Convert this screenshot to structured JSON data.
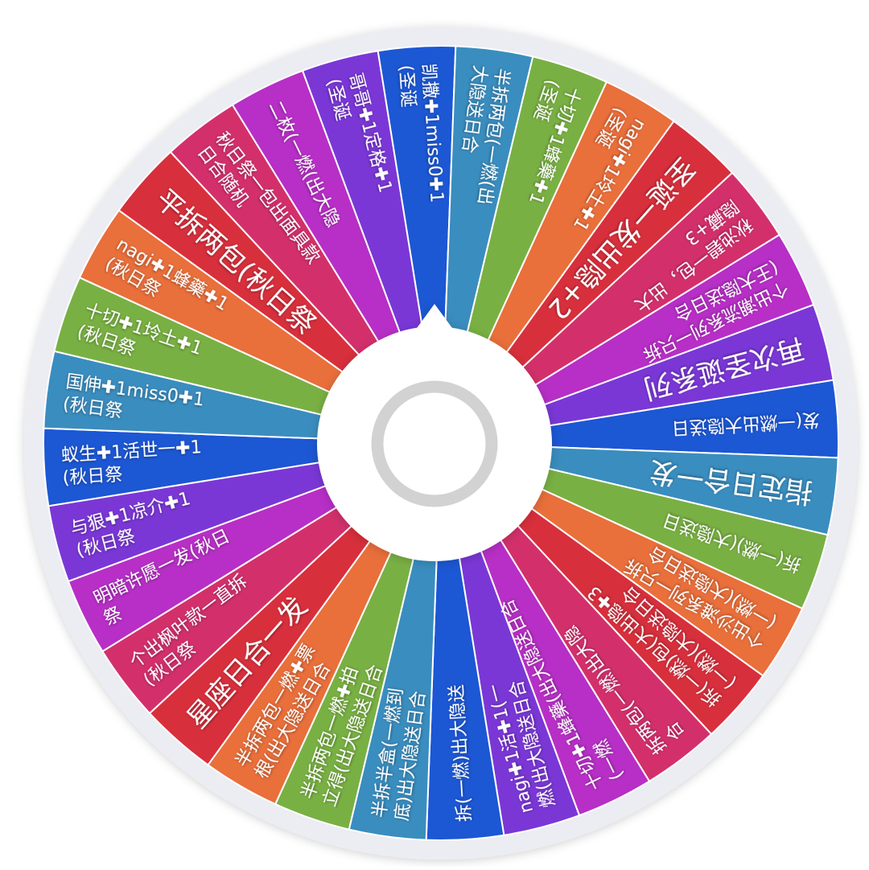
{
  "wheel": {
    "rim_color": "#ececf3",
    "divider_color": "#ffffff",
    "segments": [
      {
        "lines": [
          "蚁生✚1活世一✚1",
          "(秋日祭"
        ],
        "color": "#1c57d4"
      },
      {
        "lines": [
          "国伸✚1miss0✚1",
          "(秋日祭"
        ],
        "color": "#3a8dbf"
      },
      {
        "lines": [
          "十切✚1坽土✚1",
          "(秋日祭"
        ],
        "color": "#79b043"
      },
      {
        "lines": [
          "nagi✚1蜂藥✚1",
          "(秋日祭"
        ],
        "color": "#e96f3b"
      },
      {
        "lines": [
          "平拆两包(秋日祭"
        ],
        "color": "#d82f3c",
        "large": true
      },
      {
        "lines": [
          "秋日祭一包出面具款",
          "日合随机"
        ],
        "color": "#d3306b"
      },
      {
        "lines": [
          "二枚(一燃(出大隐"
        ],
        "color": "#b72fc6"
      },
      {
        "lines": [
          "哥哥✚1定格✚1",
          "(圣诞"
        ],
        "color": "#7a37d6"
      },
      {
        "lines": [
          "凯撒✚1miss0✚1",
          "(圣诞"
        ],
        "color": "#1c57d4"
      },
      {
        "lines": [
          "半拆两包(一燃(出",
          "大隐送日合"
        ],
        "color": "#3a8dbf"
      },
      {
        "lines": [
          "十切✚1蜂藥✚1",
          "(圣诞"
        ],
        "color": "#79b043"
      },
      {
        "lines": [
          "nagi✚1坽土✚1",
          "(圣诞"
        ],
        "color": "#e96f3b"
      },
      {
        "lines": [
          "圣诞一发出隐+2"
        ],
        "color": "#d82f3c",
        "large": true
      },
      {
        "lines": [
          "秋池碧一包，出大",
          "隐藏+3"
        ],
        "color": "#d3306b"
      },
      {
        "lines": [
          "个出潮流系列一只拆",
          "(王大隐送日合"
        ],
        "color": "#b72fc6"
      },
      {
        "lines": [
          "再次圣诞系列"
        ],
        "color": "#7a37d6",
        "large": true
      },
      {
        "lines": [
          "发(一燃出大隐送日"
        ],
        "color": "#1c57d4"
      },
      {
        "lines": [
          "指定日合一发"
        ],
        "color": "#3a8dbf",
        "large": true
      },
      {
        "lines": [
          "拆(一燃)(大隐送日"
        ],
        "color": "#79b043"
      },
      {
        "lines": [
          "个出沙滩系列一只拆",
          "(一燃)(大隐送日合"
        ],
        "color": "#e96f3b"
      },
      {
        "lines": [
          "拆(一燃)包(大出隐✚3",
          "(一燃)(大隐送日合"
        ],
        "color": "#d82f3c"
      },
      {
        "lines": [
          "拆两包(一燃)出大隐",
          "合"
        ],
        "color": "#d3306b"
      },
      {
        "lines": [
          "十切✚1蜂藥(出大隐送日合",
          "(一燃"
        ],
        "color": "#b72fc6"
      },
      {
        "lines": [
          "nagi✚1活✚1(一",
          "燃(出大隐送日合"
        ],
        "color": "#7a37d6"
      },
      {
        "lines": [
          "拆(一燃)出大隐送"
        ],
        "color": "#1c57d4"
      },
      {
        "lines": [
          "半拆半盒(一燃到",
          "底)出大隐送日合"
        ],
        "color": "#3a8dbf"
      },
      {
        "lines": [
          "半拆两包一燃✚拍",
          "立得(出大隐送日合"
        ],
        "color": "#79b043"
      },
      {
        "lines": [
          "半拆两包一燃✚票",
          "根(出大隐送日合"
        ],
        "color": "#e96f3b"
      },
      {
        "lines": [
          "星座日合一发"
        ],
        "color": "#d82f3c",
        "large": true
      },
      {
        "lines": [
          "个出枫叶款一直拆",
          "(秋日祭"
        ],
        "color": "#d3306b"
      },
      {
        "lines": [
          "明暗许愿一发(秋日",
          "祭"
        ],
        "color": "#b72fc6"
      },
      {
        "lines": [
          "与狠✚1凉介✚1",
          "(秋日祭"
        ],
        "color": "#7a37d6"
      }
    ],
    "hub": {
      "color": "#ffffff",
      "ring_color": "#d2d2d2",
      "icon": "spin-ring-icon",
      "pointer": "pointer-arrow-icon"
    }
  }
}
